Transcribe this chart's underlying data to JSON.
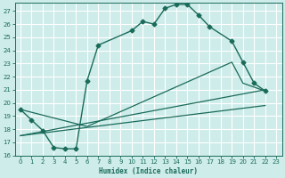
{
  "xlabel": "Humidex (Indice chaleur)",
  "bg_color": "#ceecea",
  "grid_minor_color": "#dba0a0",
  "grid_major_color": "#ffffff",
  "line_color": "#1a6b5a",
  "xlim": [
    -0.5,
    23.5
  ],
  "ylim": [
    16,
    27.6
  ],
  "yticks": [
    16,
    17,
    18,
    19,
    20,
    21,
    22,
    23,
    24,
    25,
    26,
    27
  ],
  "xticks": [
    0,
    1,
    2,
    3,
    4,
    5,
    6,
    7,
    8,
    9,
    10,
    11,
    12,
    13,
    14,
    15,
    16,
    17,
    18,
    19,
    20,
    21,
    22,
    23
  ],
  "series_main": {
    "x": [
      0,
      1,
      2,
      3,
      4,
      5,
      6,
      7,
      10,
      11,
      12,
      13,
      14,
      15,
      16,
      17,
      19,
      20,
      21,
      22
    ],
    "y": [
      19.5,
      18.7,
      17.9,
      16.6,
      16.5,
      16.5,
      21.7,
      24.4,
      25.5,
      26.2,
      26.0,
      27.2,
      27.5,
      27.5,
      26.7,
      25.8,
      24.7,
      23.1,
      21.5,
      20.9
    ]
  },
  "series_line1": {
    "x": [
      0,
      6,
      19,
      20,
      22
    ],
    "y": [
      19.5,
      18.2,
      23.1,
      21.5,
      20.9
    ]
  },
  "series_line2": {
    "x": [
      0,
      22
    ],
    "y": [
      17.5,
      21.0
    ]
  },
  "series_line3": {
    "x": [
      0,
      22
    ],
    "y": [
      17.5,
      19.8
    ]
  }
}
